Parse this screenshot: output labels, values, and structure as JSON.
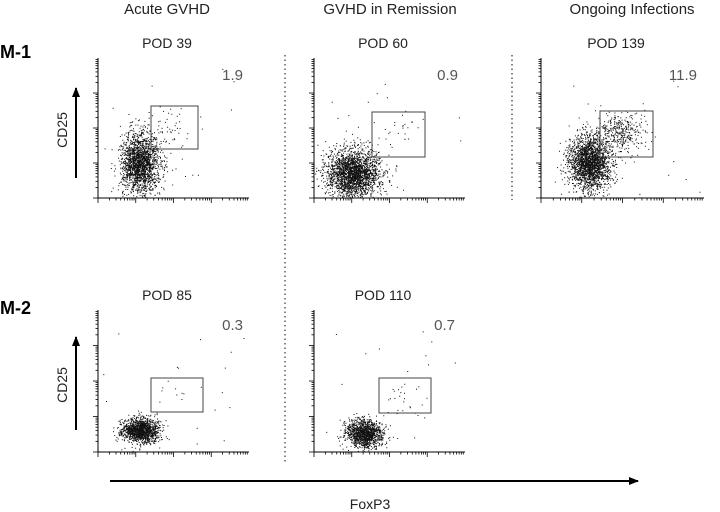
{
  "columns": [
    {
      "title": "Acute GVHD"
    },
    {
      "title": "GVHD in Remission"
    },
    {
      "title": "Ongoing Infections"
    }
  ],
  "rows": [
    {
      "label": "M-1"
    },
    {
      "label": "M-2"
    }
  ],
  "y_axis_label": "CD25",
  "x_axis_label": "FoxP3",
  "chart_data": [
    {
      "type": "scatter",
      "row": "M-1",
      "column": "Acute GVHD",
      "title": "POD 39",
      "gate_percent": "1.9",
      "xlabel": "FoxP3",
      "ylabel": "CD25"
    },
    {
      "type": "scatter",
      "row": "M-1",
      "column": "GVHD in Remission",
      "title": "POD 60",
      "gate_percent": "0.9",
      "xlabel": "FoxP3",
      "ylabel": "CD25"
    },
    {
      "type": "scatter",
      "row": "M-1",
      "column": "Ongoing Infections",
      "title": "POD 139",
      "gate_percent": "11.9",
      "xlabel": "FoxP3",
      "ylabel": "CD25"
    },
    {
      "type": "scatter",
      "row": "M-2",
      "column": "Acute GVHD",
      "title": "POD 85",
      "gate_percent": "0.3",
      "xlabel": "FoxP3",
      "ylabel": "CD25"
    },
    {
      "type": "scatter",
      "row": "M-2",
      "column": "GVHD in Remission",
      "title": "POD 110",
      "gate_percent": "0.7",
      "xlabel": "FoxP3",
      "ylabel": "CD25"
    }
  ],
  "colors": {
    "dots": "#111111",
    "axis": "#000000",
    "gate": "#444444",
    "divider": "#333333"
  }
}
